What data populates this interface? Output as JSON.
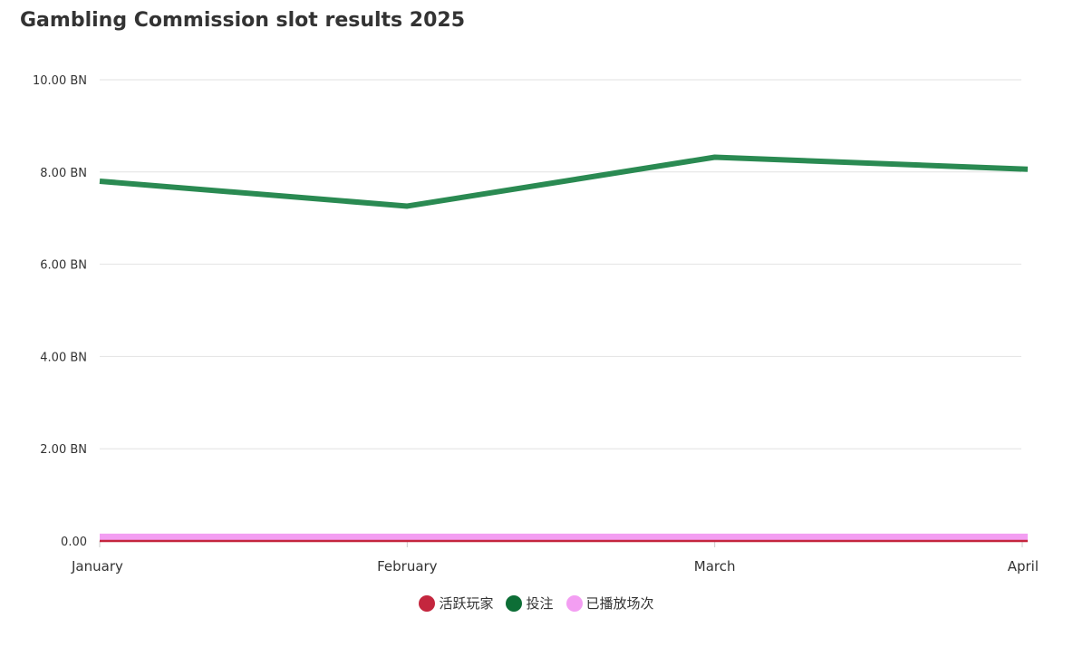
{
  "chart_data": {
    "type": "line",
    "title": "Gambling Commission slot results 2025",
    "xlabel": "",
    "ylabel": "",
    "categories": [
      "January",
      "February",
      "March",
      "April"
    ],
    "ylim": [
      0,
      10
    ],
    "y_ticks": [
      0,
      2,
      4,
      6,
      8,
      10
    ],
    "y_tick_labels": [
      "0.00",
      "2.00 BN",
      "4.00 BN",
      "6.00 BN",
      "8.00 BN",
      "10.00 BN"
    ],
    "grid": true,
    "legend_position": "bottom-center",
    "series": [
      {
        "name": "活跃玩家",
        "color": "#c4263e",
        "values": [
          0.0,
          0.0,
          0.0,
          0.0
        ]
      },
      {
        "name": "投注",
        "color": "#2a8a52",
        "legend_color": "#0d6e36",
        "values": [
          7.8,
          7.26,
          8.32,
          8.06
        ]
      },
      {
        "name": "已播放场次",
        "color": "#f39ef2",
        "values": [
          0.07,
          0.07,
          0.07,
          0.07
        ]
      }
    ]
  }
}
